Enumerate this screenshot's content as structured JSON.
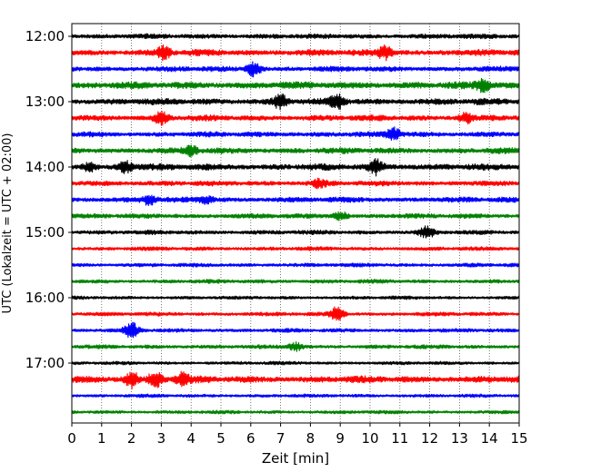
{
  "chart_data": {
    "type": "line",
    "title": "",
    "xlabel": "Zeit  [min]",
    "ylabel": "UTC (Lokalzeit = UTC + 02:00)",
    "xlim": [
      0,
      15
    ],
    "x_ticks": [
      0,
      1,
      2,
      3,
      4,
      5,
      6,
      7,
      8,
      9,
      10,
      11,
      12,
      13,
      14,
      15
    ],
    "y_tick_labels": [
      "12:00",
      "13:00",
      "14:00",
      "15:00",
      "16:00",
      "17:00"
    ],
    "row_interval_minutes": 15,
    "grid": "vertical dotted lines at each minute",
    "trace_colors": [
      "#000000",
      "#ff0000",
      "#0000ff",
      "#008000"
    ],
    "series": [
      {
        "start": "12:00",
        "amplitude": 0.6
      },
      {
        "start": "12:15",
        "amplitude": 0.9
      },
      {
        "start": "12:30",
        "amplitude": 0.7
      },
      {
        "start": "12:45",
        "amplitude": 1.0
      },
      {
        "start": "13:00",
        "amplitude": 0.9
      },
      {
        "start": "13:15",
        "amplitude": 0.8
      },
      {
        "start": "13:30",
        "amplitude": 0.7
      },
      {
        "start": "13:45",
        "amplitude": 0.8
      },
      {
        "start": "14:00",
        "amplitude": 0.9
      },
      {
        "start": "14:15",
        "amplitude": 0.7
      },
      {
        "start": "14:30",
        "amplitude": 0.7
      },
      {
        "start": "14:45",
        "amplitude": 0.6
      },
      {
        "start": "15:00",
        "amplitude": 0.5
      },
      {
        "start": "15:15",
        "amplitude": 0.4
      },
      {
        "start": "15:30",
        "amplitude": 0.4
      },
      {
        "start": "15:45",
        "amplitude": 0.4
      },
      {
        "start": "16:00",
        "amplitude": 0.3
      },
      {
        "start": "16:15",
        "amplitude": 0.4
      },
      {
        "start": "16:30",
        "amplitude": 0.4
      },
      {
        "start": "16:45",
        "amplitude": 0.4
      },
      {
        "start": "17:00",
        "amplitude": 0.3
      },
      {
        "start": "17:15",
        "amplitude": 1.0
      },
      {
        "start": "17:30",
        "amplitude": 0.3
      },
      {
        "start": "17:45",
        "amplitude": 0.3
      }
    ],
    "events": [
      {
        "start": "12:15",
        "minute": 3.1,
        "strength": 0.8
      },
      {
        "start": "12:15",
        "minute": 10.5,
        "strength": 0.8
      },
      {
        "start": "12:30",
        "minute": 6.1,
        "strength": 0.9
      },
      {
        "start": "12:45",
        "minute": 13.8,
        "strength": 0.7
      },
      {
        "start": "13:00",
        "minute": 7.0,
        "strength": 0.8
      },
      {
        "start": "13:00",
        "minute": 8.9,
        "strength": 0.9
      },
      {
        "start": "13:15",
        "minute": 3.0,
        "strength": 0.7
      },
      {
        "start": "13:15",
        "minute": 13.2,
        "strength": 0.6
      },
      {
        "start": "13:30",
        "minute": 10.8,
        "strength": 0.8
      },
      {
        "start": "13:45",
        "minute": 4.0,
        "strength": 0.6
      },
      {
        "start": "14:00",
        "minute": 0.6,
        "strength": 0.5
      },
      {
        "start": "14:00",
        "minute": 1.8,
        "strength": 0.7
      },
      {
        "start": "14:00",
        "minute": 10.2,
        "strength": 0.9
      },
      {
        "start": "14:15",
        "minute": 8.3,
        "strength": 0.5
      },
      {
        "start": "14:30",
        "minute": 2.6,
        "strength": 0.6
      },
      {
        "start": "14:30",
        "minute": 4.5,
        "strength": 0.5
      },
      {
        "start": "14:45",
        "minute": 9.0,
        "strength": 0.5
      },
      {
        "start": "15:00",
        "minute": 11.9,
        "strength": 0.7
      },
      {
        "start": "16:15",
        "minute": 8.9,
        "strength": 0.9
      },
      {
        "start": "16:30",
        "minute": 2.0,
        "strength": 1.0
      },
      {
        "start": "16:45",
        "minute": 7.5,
        "strength": 0.5
      },
      {
        "start": "17:15",
        "minute": 2.0,
        "strength": 1.0
      },
      {
        "start": "17:15",
        "minute": 2.8,
        "strength": 0.9
      },
      {
        "start": "17:15",
        "minute": 3.7,
        "strength": 0.7
      }
    ]
  }
}
